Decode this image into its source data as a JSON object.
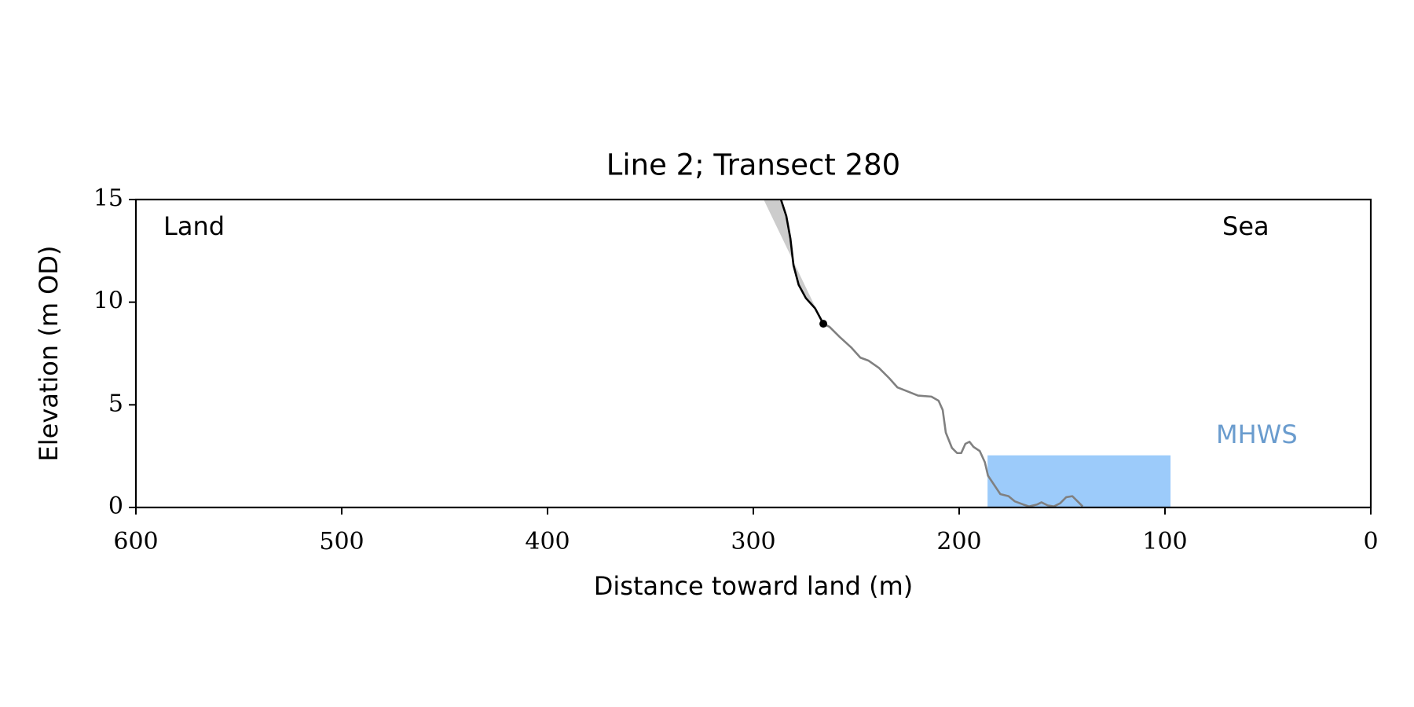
{
  "chart_data": {
    "type": "line",
    "title": "Line 2; Transect 280",
    "x_label": "Distance toward land (m)",
    "y_label": "Elevation (m OD)",
    "xlim": [
      600,
      0
    ],
    "ylim": [
      0,
      15
    ],
    "xticks": [
      600,
      500,
      400,
      300,
      200,
      100,
      0
    ],
    "yticks": [
      0,
      5,
      10,
      15
    ],
    "annotations": [
      {
        "text": "Land",
        "color": "#000000"
      },
      {
        "text": "Sea",
        "color": "#000000"
      },
      {
        "text": "MHWS",
        "color": "#6a9cce"
      }
    ],
    "mhws": {
      "x": [
        186.2,
        97.3
      ],
      "level": 2.54,
      "color": "#9ccbfa"
    },
    "cliff_envelope": {
      "x": [
        295,
        266
      ],
      "y": [
        15,
        8.95
      ],
      "color": "#cccccc"
    },
    "cliff": {
      "color": "#000000",
      "x": [
        286.6,
        284,
        282,
        280.5,
        278,
        274.5,
        270,
        266
      ],
      "y": [
        15,
        14.2,
        13.1,
        11.8,
        10.85,
        10.2,
        9.7,
        8.95
      ]
    },
    "cliff_toe": {
      "x": 266,
      "y": 8.95,
      "color": "#000000"
    },
    "profile": {
      "color": "#808080",
      "x": [
        266,
        263,
        258,
        252.5,
        248,
        244,
        239,
        234,
        230,
        225,
        220,
        213.5,
        210,
        208,
        206.5,
        203.5,
        201,
        199,
        197,
        195,
        193,
        190,
        187.5,
        186,
        183,
        180,
        176,
        173,
        169,
        166,
        162,
        160,
        157,
        154,
        151,
        148,
        145,
        143,
        140
      ],
      "y": [
        8.95,
        8.8,
        8.3,
        7.8,
        7.3,
        7.15,
        6.8,
        6.3,
        5.85,
        5.65,
        5.45,
        5.4,
        5.2,
        4.75,
        3.65,
        2.9,
        2.65,
        2.65,
        3.1,
        3.2,
        2.95,
        2.75,
        2.2,
        1.55,
        1.1,
        0.65,
        0.55,
        0.3,
        0.15,
        0.05,
        0.15,
        0.25,
        0.1,
        0.05,
        0.2,
        0.5,
        0.55,
        0.35,
        0.05
      ]
    }
  }
}
